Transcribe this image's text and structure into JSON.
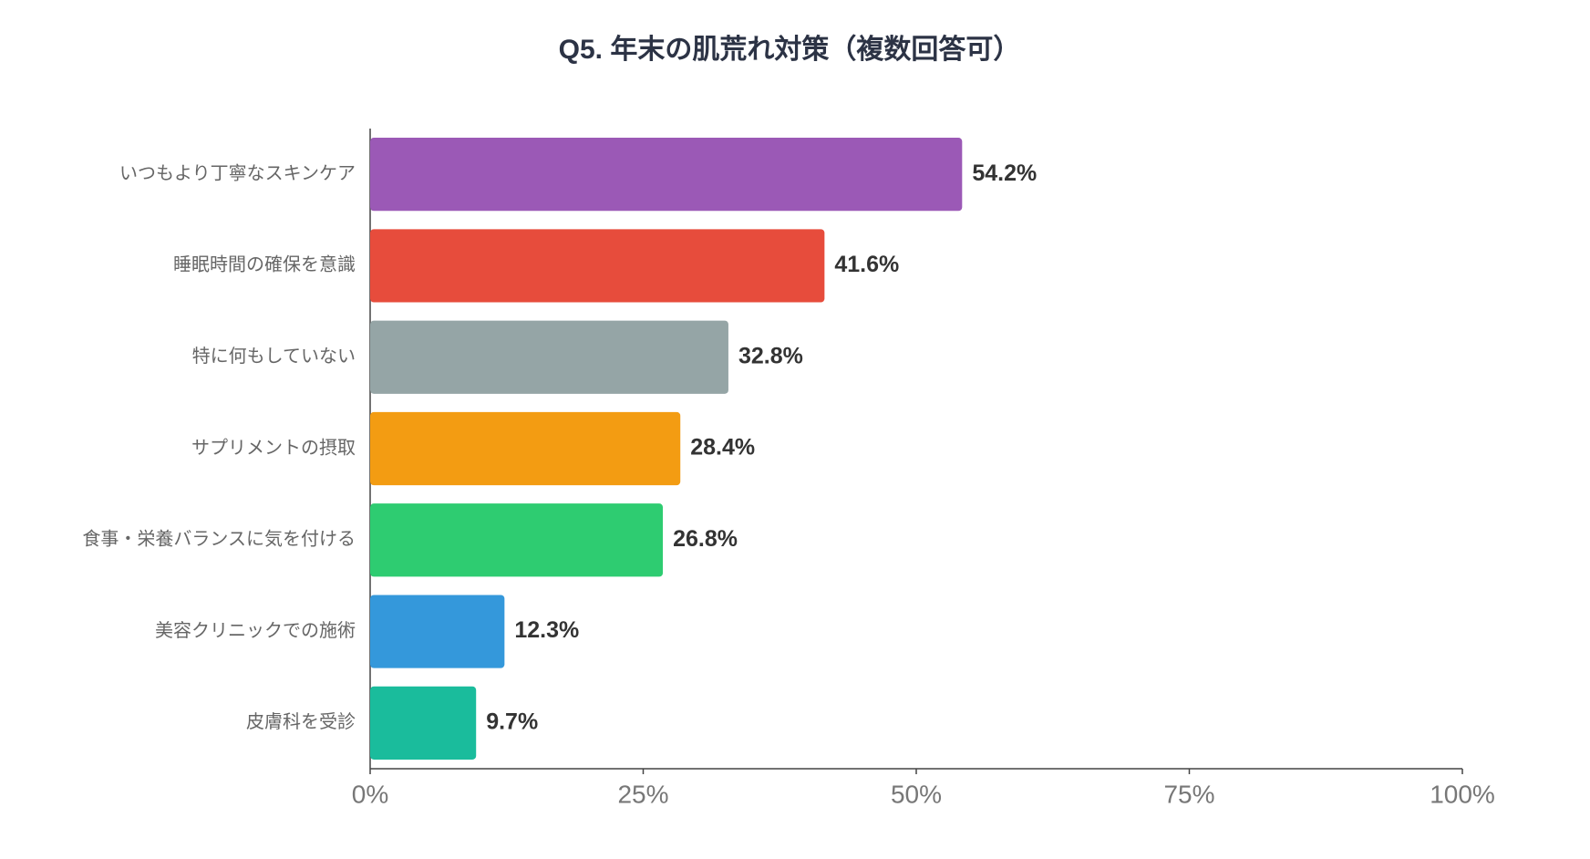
{
  "chart_data": {
    "type": "bar",
    "orientation": "horizontal",
    "title": "Q5. 年末の肌荒れ対策（複数回答可）",
    "categories": [
      "いつもより丁寧なスキンケア",
      "睡眠時間の確保を意識",
      "特に何もしていない",
      "サプリメントの摂取",
      "食事・栄養バランスに気を付ける",
      "美容クリニックでの施術",
      "皮膚科を受診"
    ],
    "values": [
      54.2,
      41.6,
      32.8,
      28.4,
      26.8,
      12.3,
      9.7
    ],
    "value_labels": [
      "54.2%",
      "41.6%",
      "32.8%",
      "28.4%",
      "26.8%",
      "12.3%",
      "9.7%"
    ],
    "colors": [
      "#9b59b6",
      "#e74c3c",
      "#95a5a6",
      "#f39c12",
      "#2ecc71",
      "#3498db",
      "#1abc9c"
    ],
    "xlim": [
      0,
      100
    ],
    "xticks": [
      {
        "value": 0,
        "label": "0%"
      },
      {
        "value": 25,
        "label": "25%"
      },
      {
        "value": 50,
        "label": "50%"
      },
      {
        "value": 75,
        "label": "75%"
      },
      {
        "value": 100,
        "label": "100%"
      }
    ],
    "grid": false
  }
}
